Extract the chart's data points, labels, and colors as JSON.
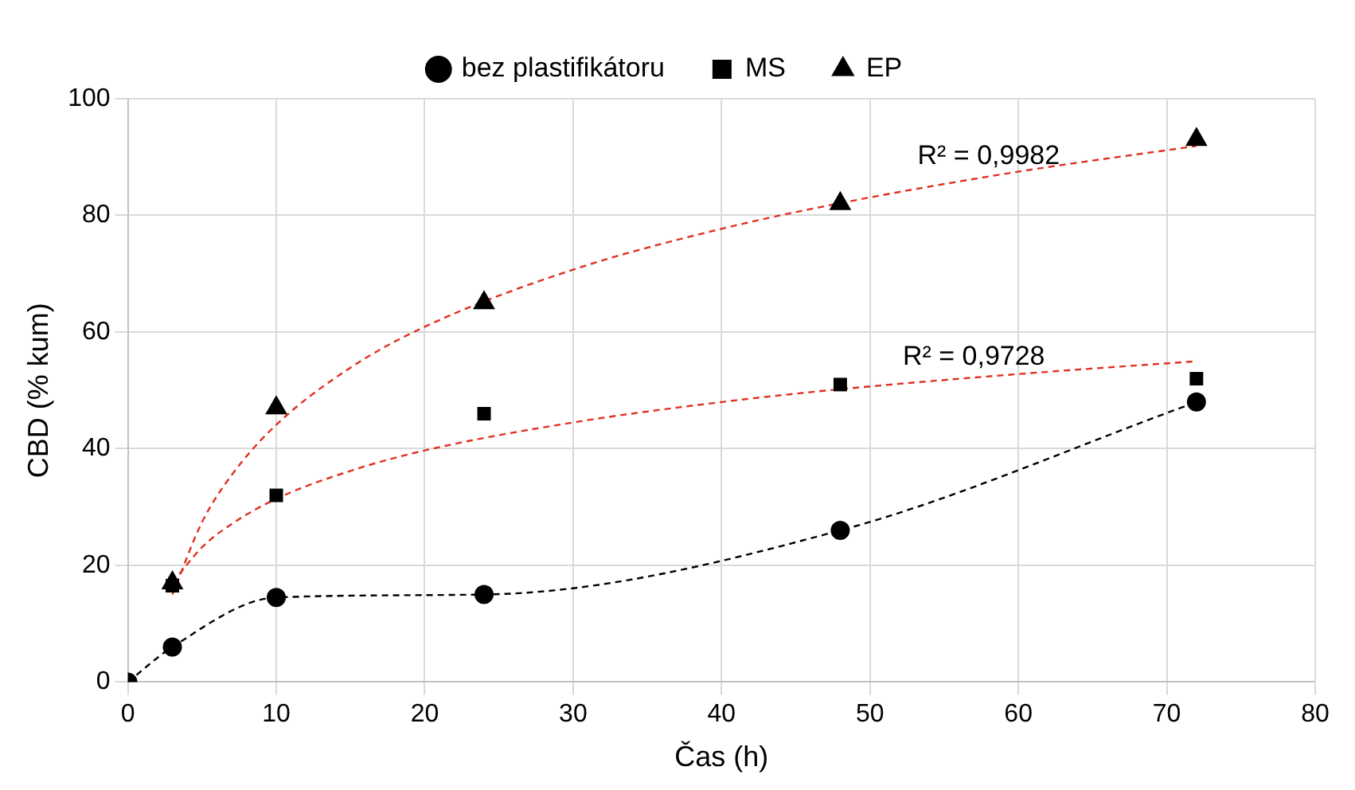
{
  "chart_data": {
    "type": "scatter",
    "xlabel": "Čas (h)",
    "ylabel": "CBD (% kum)",
    "xlim": [
      0,
      80
    ],
    "xticks": [
      0,
      10,
      20,
      30,
      40,
      50,
      60,
      70,
      80
    ],
    "ylim": [
      0,
      100
    ],
    "yticks": [
      0,
      20,
      40,
      60,
      80,
      100
    ],
    "grid": true,
    "legend": "top",
    "series": [
      {
        "name": "bez plastifikátoru",
        "type": "line",
        "marker": "circle",
        "line_style": "dashed",
        "color": "#000000",
        "x": [
          0,
          3,
          10,
          24,
          48,
          72
        ],
        "values": [
          0,
          6,
          14.5,
          15,
          26,
          48
        ]
      },
      {
        "name": "MS",
        "type": "scatter",
        "marker": "square",
        "color": "#000000",
        "x": [
          3,
          10,
          24,
          48,
          72
        ],
        "values": [
          16.5,
          32,
          46,
          51,
          52
        ]
      },
      {
        "name": "EP",
        "type": "scatter",
        "marker": "triangle",
        "color": "#000000",
        "x": [
          3,
          10,
          24,
          48,
          72
        ],
        "values": [
          17,
          47,
          65,
          82,
          93
        ]
      },
      {
        "type": "line",
        "marker": "none",
        "line_style": "dashed",
        "color": "#e03020",
        "x": [
          3,
          5,
          7,
          10,
          15,
          20,
          30,
          40,
          48,
          60,
          72
        ],
        "values": [
          17,
          23.1,
          27.1,
          31.4,
          36.2,
          39.7,
          44.5,
          48,
          50.2,
          52.8,
          55
        ]
      },
      {
        "type": "line",
        "marker": "none",
        "line_style": "dashed",
        "color": "#e03020",
        "x": [
          3,
          5,
          7,
          10,
          15,
          20,
          30,
          40,
          48,
          60,
          72
        ],
        "values": [
          15,
          27.4,
          35.5,
          44.1,
          53.9,
          60.9,
          70.7,
          77.7,
          82.1,
          87.5,
          91.9
        ]
      }
    ],
    "annotations": [
      {
        "text": "R² = 0,9982",
        "x": 58,
        "y": 86.7
      },
      {
        "text": "R² = 0,9728",
        "x": 57,
        "y": 52.2
      }
    ]
  }
}
